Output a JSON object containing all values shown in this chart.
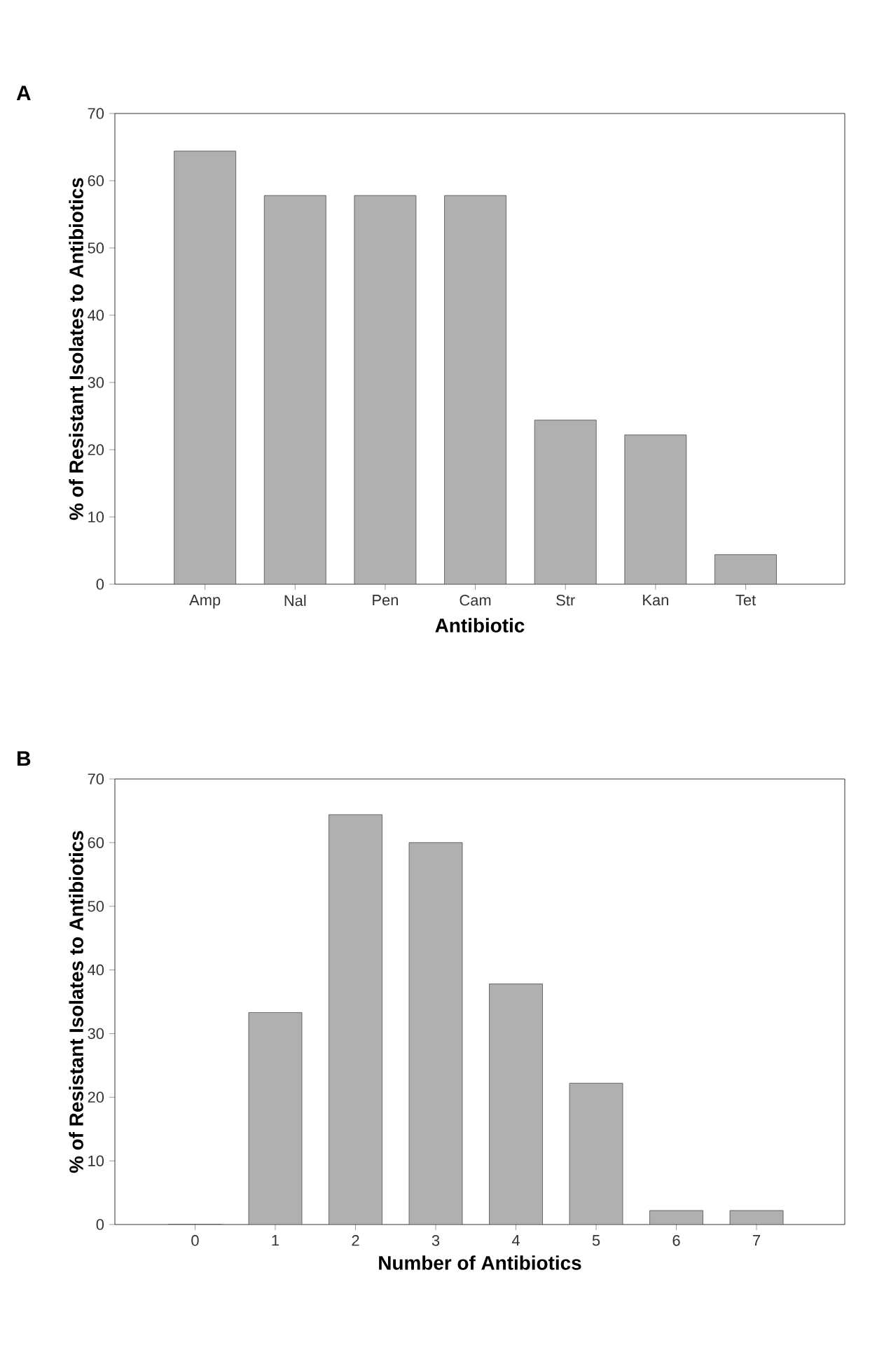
{
  "chart_data": [
    {
      "type": "bar",
      "title": "A",
      "xlabel": "Antibiotic",
      "ylabel": "% of Resistant Isolates to Antibiotics",
      "categories": [
        "Amp",
        "Nal",
        "Pen",
        "Cam",
        "Str",
        "Kan",
        "Tet"
      ],
      "values": [
        64.4,
        57.8,
        57.8,
        57.8,
        24.4,
        22.2,
        4.4
      ],
      "color": "#b0b0b0",
      "ylim": [
        0,
        70
      ],
      "yticks": [
        0,
        10,
        20,
        30,
        40,
        50,
        60,
        70
      ],
      "grid": false
    },
    {
      "type": "bar",
      "title": "B",
      "xlabel": "Number of Antibiotics",
      "ylabel": "% of Resistant Isolates to Antibiotics",
      "categories": [
        "0",
        "1",
        "2",
        "3",
        "4",
        "5",
        "6",
        "7"
      ],
      "values": [
        0,
        33.3,
        64.4,
        60,
        37.8,
        22.2,
        2.2,
        2.2
      ],
      "color": "#b0b0b0",
      "ylim": [
        0,
        70
      ],
      "yticks": [
        0,
        10,
        20,
        30,
        40,
        50,
        60,
        70
      ],
      "grid": false
    }
  ]
}
